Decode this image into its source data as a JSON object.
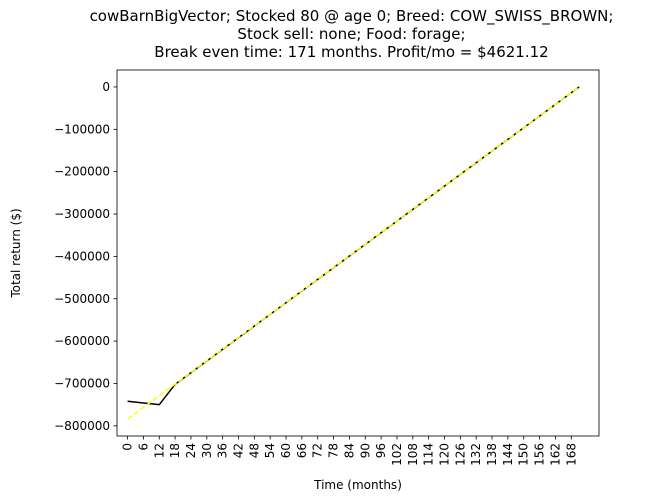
{
  "chart_data": {
    "type": "line",
    "title_lines": [
      "cowBarnBigVector; Stocked 80 @ age 0; Breed: COW_SWISS_BROWN;",
      "Stock sell: none; Food: forage;",
      "Break even time: 171 months. Profit/mo = $4621.12"
    ],
    "xlabel": "Time (months)",
    "ylabel": "Total return ($)",
    "xlim": [
      -4,
      178.5
    ],
    "ylim": [
      -824000,
      40000
    ],
    "x_ticks": [
      0,
      6,
      12,
      18,
      24,
      30,
      36,
      42,
      48,
      54,
      60,
      66,
      72,
      78,
      84,
      90,
      96,
      102,
      108,
      114,
      120,
      126,
      132,
      138,
      144,
      150,
      156,
      162,
      168
    ],
    "y_ticks": [
      0,
      -100000,
      -200000,
      -300000,
      -400000,
      -500000,
      -600000,
      -700000,
      -800000
    ],
    "y_tick_labels": [
      "0",
      "−100000",
      "−200000",
      "−300000",
      "−400000",
      "−500000",
      "−600000",
      "−700000",
      "−800000"
    ],
    "grid": false,
    "series": [
      {
        "style": "solid",
        "color": "#000000",
        "x": [
          0,
          6,
          12,
          18,
          171
        ],
        "y": [
          -742000,
          -746000,
          -750000,
          -702000,
          0
        ]
      },
      {
        "style": "dashed",
        "color": "#ffff00",
        "x": [
          0,
          171
        ],
        "y": [
          -784000,
          0
        ]
      }
    ]
  }
}
